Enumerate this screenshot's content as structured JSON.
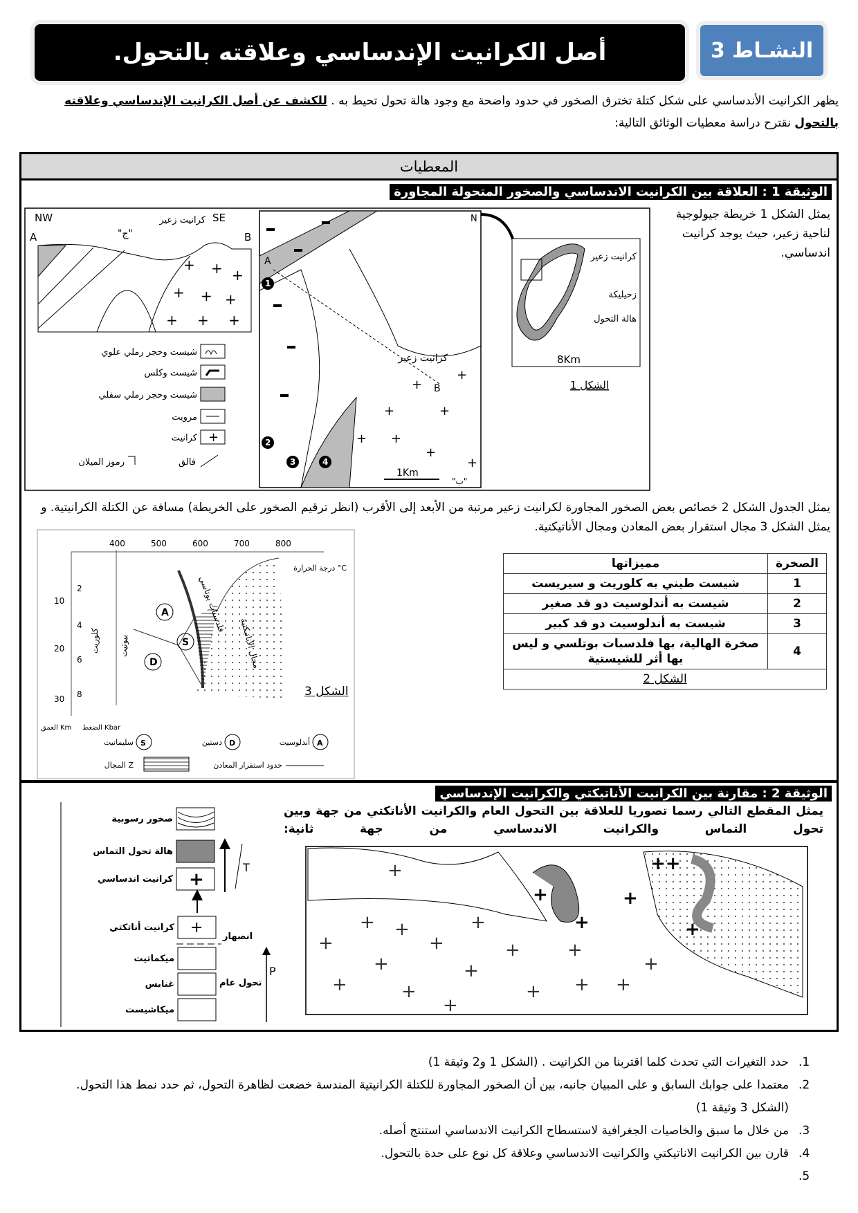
{
  "header": {
    "title": "أصل الكرانيت الإندساسي وعلاقته بالتحول.",
    "activity_badge": "النشـاط 3"
  },
  "intro": {
    "text": "يظهر الكرانيت الأندساسي على شكل كتلة تخترق الصخور في حدود واضحة مع وجود هالة تحول تحيط به .",
    "bold_part": "للكشف عن أصل الكرانيت الإندساسي وعلاقته بالتحول",
    "rest": " نقترح دراسة معطيات الوثائق التالية:"
  },
  "givens_header": "المعطيات",
  "doc1": {
    "title": "الوثيقة 1 : العلاقة بين الكرانيت الاندساسي والصخور المتحولة المجاورة",
    "description": "يمثل الشكل 1 خريطة جيولوجية لناحية زعير، حيث يوجد كرانيت اندساسي.",
    "cross_section": {
      "nw": "NW",
      "se": "SE",
      "a": "A",
      "b": "B",
      "j": "\"ج\"",
      "granite_label": "كرانيت زعير"
    },
    "legend": [
      {
        "label": "شيست وحجر رملي علوي",
        "pattern": "wavy"
      },
      {
        "label": "شيست وكلس",
        "pattern": "dashes"
      },
      {
        "label": "شيست وحجر رملي سفلي",
        "pattern": "grey"
      },
      {
        "label": "مرويت",
        "pattern": "line"
      },
      {
        "label": "كرانيت",
        "pattern": "cross"
      }
    ],
    "dip_symbol": "رموز الميلان",
    "fault": "فالق",
    "map": {
      "north": "N",
      "a": "A",
      "b": "B",
      "b2": "\"ب\"",
      "scale": "1Km",
      "granite_label": "كرانيت زعير",
      "points": [
        "1",
        "2",
        "3",
        "4"
      ]
    },
    "inset": {
      "granite": "كرانيت زعير",
      "town": "زحيليكة",
      "aureole": "هالة التحول",
      "scale": "8Km",
      "caption": "الشكل 1"
    }
  },
  "paragraph": "يمثل الجدول الشكل 2 خصائص بعض الصخور المجاورة لكرانيت زعير مرتبة من الأبعد إلى الأقرب (انظر ترقيم الصخور على الخريطة) مسافة عن الكتلة الكرانيتية. و يمثل الشكل 3 مجال استقرار بعض المعادن ومجال الأناتيكتية.",
  "table": {
    "headers": [
      "الصخرة",
      "مميزاتها"
    ],
    "rows": [
      {
        "rock": "1",
        "features": "شيست طيني به كلوريت و سيريست"
      },
      {
        "rock": "2",
        "features": "شيست به أندلوسيت دو قد صغير"
      },
      {
        "rock": "3",
        "features": "شيست به أندلوسيت دو قد كبير"
      },
      {
        "rock": "4",
        "features": "صخرة الهالية، بها فلدسبات بوتلسي و ليس بها أثر للشيستية"
      }
    ],
    "caption": "الشكل 2"
  },
  "fig3": {
    "caption": "الشكل 3",
    "temp_ticks": [
      "400",
      "500",
      "600",
      "700",
      "800"
    ],
    "temp_label": "درجة الحرارة °C",
    "depth_ticks": [
      "10",
      "20",
      "30"
    ],
    "pressure_ticks": [
      "2",
      "4",
      "6",
      "8"
    ],
    "depth_label": "العمق Km",
    "pressure_label": "الضغط Kbar",
    "chlorite": "كلوريت",
    "biotite": "بيوتيت",
    "feldspar": "فلدسبات بوتاسي",
    "anatexis": "مجال الأناتيكتية",
    "legend": {
      "A": "أندلوسيت",
      "D": "دستين",
      "S": "سليمانيت",
      "zone": "المجال Z",
      "limits": "حدود استقرار المعادن"
    }
  },
  "doc2": {
    "title": "الوثيقة 2 : مقارنة بين الكرانيت الأناتيكتي والكرانيت الإندساسي",
    "text": "يمثل المقطع التالي رسما تصوريا للعلاقة بين التحول العام والكرانيت الأناتكتي من جهة وبين تحول التماس والكرانيت الاندساسي من جهة ثانية:",
    "legend": {
      "sedimentary": "صخور رسوبية",
      "aureole": "هالة تحول التماس",
      "intrusive": "كرانيت اندساسي",
      "anatectic": "كرانيت أناتكتي",
      "fusion": "انصهار",
      "migmatite": "ميكماتيت",
      "gneiss": "غنايس",
      "micaschist": "ميكاشيست",
      "regional": "تحول عام",
      "t": "T",
      "p": "P"
    }
  },
  "questions": [
    {
      "n": "1.",
      "text": "حدد التغيرات التي تحدث كلما اقتربنا من الكرانيت . (الشكل 1 و2 وثيقة 1)"
    },
    {
      "n": "2.",
      "text": "معتمدا على جوابك السابق و على المبيان جانبه، بين أن الصخور المجاورة للكتلة الكرانيتية المندسة خضعت لظاهرة التحول، ثم حدد نمط هذا التحول.(الشكل 3 وثيقة 1)"
    },
    {
      "n": "3.",
      "text": "من خلال ما سبق والخاصيات الجغرافية لاستسطاح الكرانيت الاندساسي استنتج أصله."
    },
    {
      "n": "4.",
      "text": "قارن بين الكرانيت الاناتيكتي والكرانيت الاندساسي وعلاقة كل نوع على حدة بالتحول."
    },
    {
      "n": "5.",
      "text": ""
    }
  ]
}
